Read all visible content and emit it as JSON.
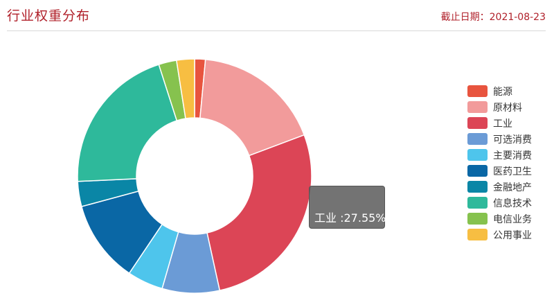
{
  "header": {
    "title": "行业权重分布",
    "date_label": "截止日期：",
    "date_value": "2021-08-23"
  },
  "tooltip": {
    "category": "工业",
    "separator": " :",
    "value_text": "27.55%"
  },
  "chart_data": {
    "type": "pie",
    "variant": "donut",
    "title": "行业权重分布",
    "legend_position": "right",
    "categories": [
      "能源",
      "原材料",
      "工业",
      "可选消费",
      "主要消费",
      "医药卫生",
      "金融地产",
      "信息技术",
      "电信业务",
      "公用事业"
    ],
    "values": [
      1.5,
      18.0,
      27.55,
      8.0,
      5.0,
      11.5,
      3.5,
      21.0,
      2.5,
      2.5
    ],
    "colors": [
      "#e8543e",
      "#f29b9b",
      "#dc4556",
      "#6b9bd6",
      "#4ec5ec",
      "#0a67a5",
      "#0a86a6",
      "#2eb99b",
      "#86c24e",
      "#f7be42"
    ]
  }
}
